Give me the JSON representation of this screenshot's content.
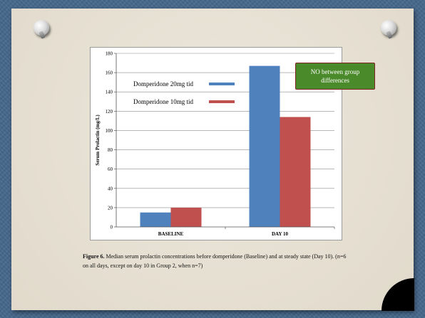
{
  "slide": {
    "caption_label": "Figure 6.",
    "caption_text": "Median serum prolactin concentrations before domperidone (Baseline) and at steady state (Day 10). (n=6 on all days, except on day 10 in Group 2, when n=7)",
    "callout_text": "NO between group differences"
  },
  "chart_data": {
    "type": "bar",
    "categories": [
      "BASELINE",
      "DAY 10"
    ],
    "series": [
      {
        "name": "Domperidone 20mg tid",
        "values": [
          15,
          167
        ],
        "color": "#4f81bd"
      },
      {
        "name": "Domperidone 10mg tid",
        "values": [
          20,
          114
        ],
        "color": "#c0504d"
      }
    ],
    "ylabel": "Serum Prolactin (mg/L)",
    "ylim": [
      0,
      180
    ],
    "yticks": [
      "0",
      "20",
      "40",
      "60",
      "80",
      "100",
      "120",
      "140",
      "160",
      "180"
    ],
    "grid": true,
    "legend": "top-left"
  }
}
